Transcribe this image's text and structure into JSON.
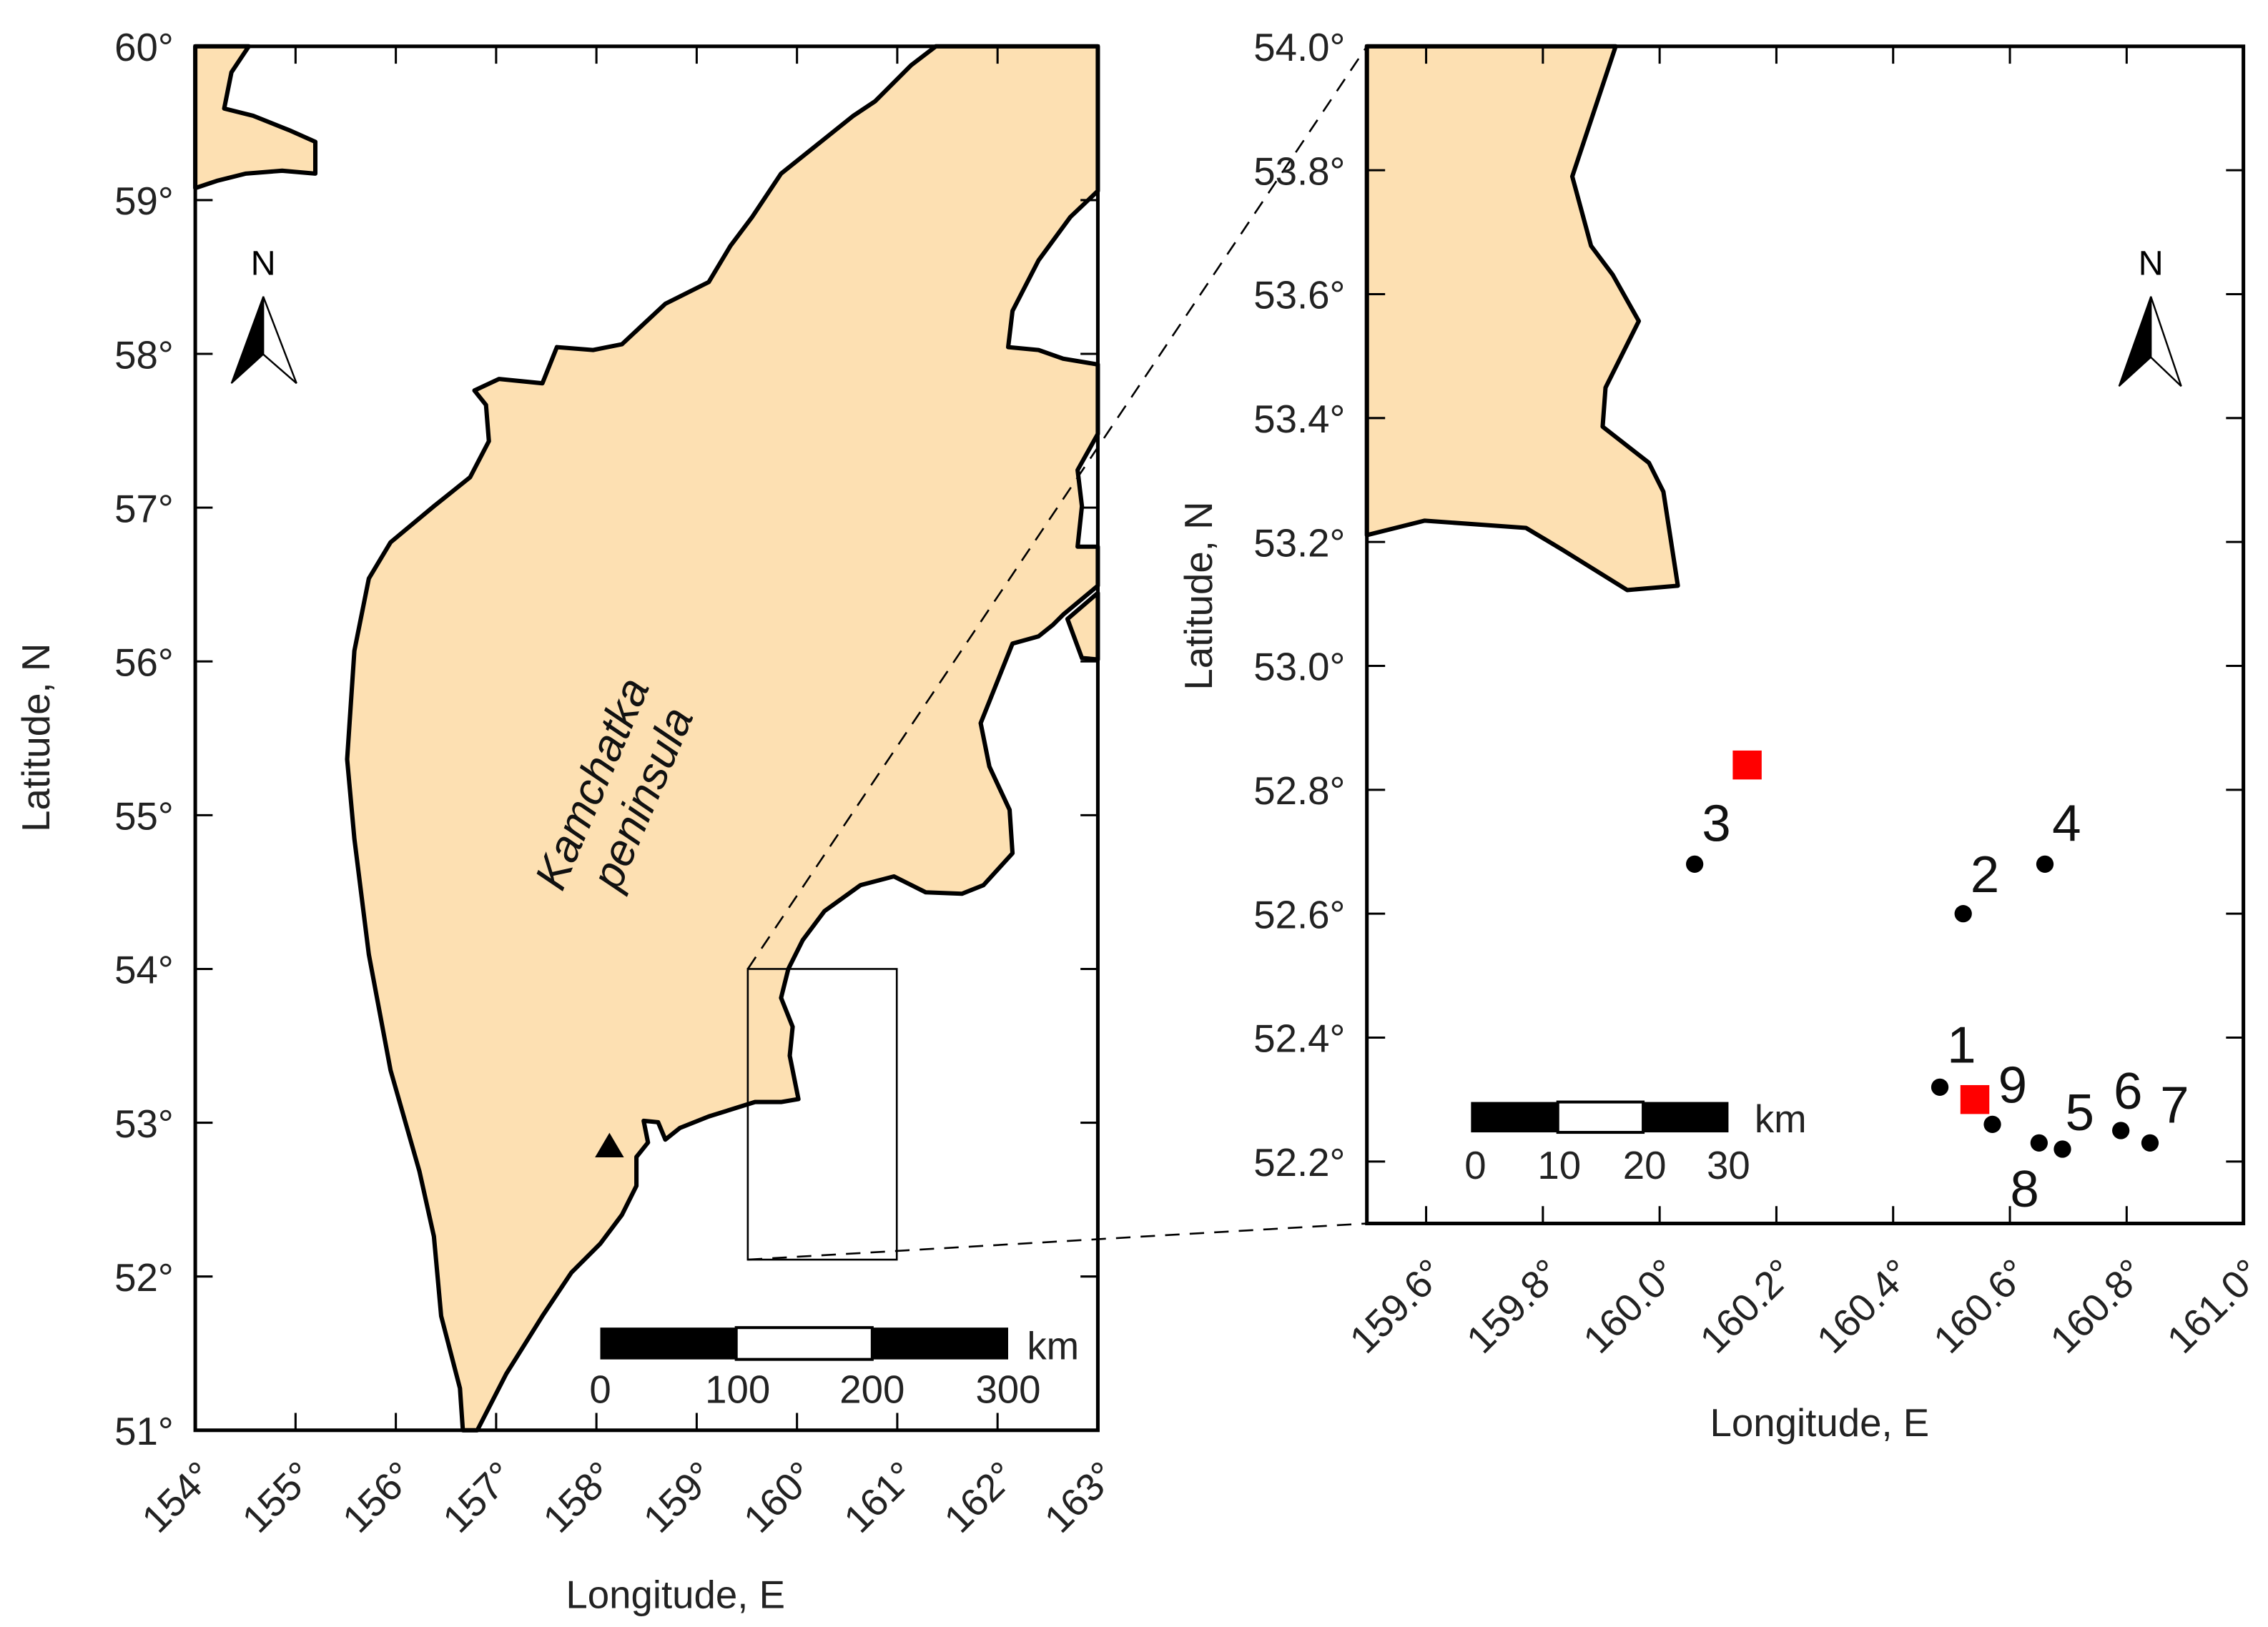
{
  "chart_data": [
    {
      "type": "map",
      "id": "overview",
      "xlabel": "Longitude, E",
      "ylabel": "Latitude, N",
      "xlim": [
        154,
        163
      ],
      "ylim": [
        51,
        60
      ],
      "xticks": [
        "154°",
        "155°",
        "156°",
        "157°",
        "158°",
        "159°",
        "160°",
        "161°",
        "162°",
        "163°"
      ],
      "yticks": [
        "51°",
        "52°",
        "53°",
        "54°",
        "55°",
        "56°",
        "57°",
        "58°",
        "59°",
        "60°"
      ],
      "region_label": [
        "Kamchatka",
        "peninsula"
      ],
      "north_label": "N",
      "scale_bar": {
        "unit": "km",
        "labels": [
          "0",
          "100",
          "200",
          "300"
        ]
      },
      "marker": {
        "shape": "triangle",
        "lon": 158.13,
        "lat": 52.85
      },
      "inset_box": {
        "lon": [
          159.5,
          161.0
        ],
        "lat": [
          52.1,
          54.0
        ]
      }
    },
    {
      "type": "map",
      "id": "detail",
      "xlabel": "Longitude, E",
      "ylabel": "Latitude, N",
      "xlim": [
        159.5,
        161.0
      ],
      "ylim": [
        52.1,
        54.0
      ],
      "xticks": [
        "159.6°",
        "159.8°",
        "160.0°",
        "160.2°",
        "160.4°",
        "160.6°",
        "160.8°",
        "161.0°"
      ],
      "yticks": [
        "52.2°",
        "52.4°",
        "52.6°",
        "52.8°",
        "53.0°",
        "53.2°",
        "53.4°",
        "53.6°",
        "53.8°",
        "54.0°"
      ],
      "north_label": "N",
      "scale_bar": {
        "unit": "km",
        "labels": [
          "0",
          "10",
          "20",
          "30"
        ]
      },
      "sites": [
        {
          "label": "1",
          "lon": 160.48,
          "lat": 52.32
        },
        {
          "label": "2",
          "lon": 160.52,
          "lat": 52.6
        },
        {
          "label": "3",
          "lon": 160.06,
          "lat": 52.68
        },
        {
          "label": "4",
          "lon": 160.66,
          "lat": 52.68
        },
        {
          "label": "5",
          "lon": 160.69,
          "lat": 52.22
        },
        {
          "label": "6",
          "lon": 160.79,
          "lat": 52.25
        },
        {
          "label": "7",
          "lon": 160.84,
          "lat": 52.23
        },
        {
          "label": "8",
          "lon": 160.65,
          "lat": 52.23
        },
        {
          "label": "9",
          "lon": 160.57,
          "lat": 52.26
        }
      ],
      "stations": [
        {
          "lon": 160.15,
          "lat": 52.84
        },
        {
          "lon": 160.54,
          "lat": 52.3
        }
      ],
      "colors": {
        "land": "#fde0b2",
        "station": "#ff0000",
        "site": "#000000"
      }
    }
  ]
}
